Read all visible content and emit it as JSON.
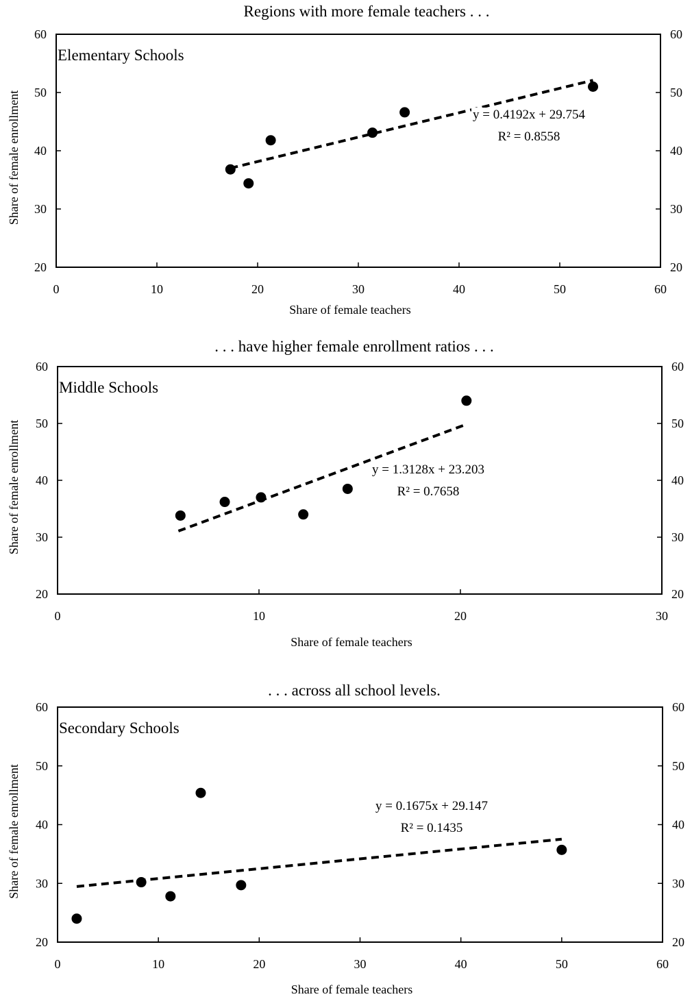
{
  "chart_data": [
    {
      "type": "scatter",
      "title": "Regions with more female teachers . . .",
      "panel_label": "Elementary Schools",
      "xlabel": "Share of female teachers",
      "ylabel": "Share of female enrollment",
      "xlim": [
        0,
        60
      ],
      "ylim": [
        20,
        60
      ],
      "xticks": [
        "0",
        "10",
        "20",
        "30",
        "40",
        "50",
        "60"
      ],
      "yticks": [
        "20",
        "30",
        "40",
        "50",
        "60"
      ],
      "points": [
        {
          "x": 17.3,
          "y": 36.8
        },
        {
          "x": 19.1,
          "y": 34.4
        },
        {
          "x": 21.3,
          "y": 41.8
        },
        {
          "x": 31.4,
          "y": 43.1
        },
        {
          "x": 34.6,
          "y": 46.6
        },
        {
          "x": 53.3,
          "y": 51.0
        }
      ],
      "trendline": {
        "slope": 0.4192,
        "intercept": 29.754,
        "x_range": [
          17.3,
          53.3
        ]
      },
      "equation": "y = 0.4192x + 29.754",
      "r_squared": "R² = 0.8558",
      "grid": false,
      "right_axis_ticks": true
    },
    {
      "type": "scatter",
      "title": ". . . have higher female enrollment ratios . . .",
      "panel_label": "Middle Schools",
      "xlabel": "Share of female teachers",
      "ylabel": "Share of female enrollment",
      "xlim": [
        0,
        30
      ],
      "ylim": [
        20,
        60
      ],
      "xticks": [
        "0",
        "10",
        "20",
        "30"
      ],
      "yticks": [
        "20",
        "30",
        "40",
        "50",
        "60"
      ],
      "points": [
        {
          "x": 6.1,
          "y": 33.8
        },
        {
          "x": 8.3,
          "y": 36.2
        },
        {
          "x": 10.1,
          "y": 37.0
        },
        {
          "x": 12.2,
          "y": 34.0
        },
        {
          "x": 14.4,
          "y": 38.5
        },
        {
          "x": 20.3,
          "y": 54.0
        }
      ],
      "trendline": {
        "slope": 1.3128,
        "intercept": 23.203,
        "x_range": [
          6.0,
          20.2
        ]
      },
      "equation": "y = 1.3128x + 23.203",
      "r_squared": "R² = 0.7658",
      "grid": false,
      "right_axis_ticks": true
    },
    {
      "type": "scatter",
      "title": ". . . across all school levels.",
      "panel_label": "Secondary Schools",
      "xlabel": "Share of female teachers",
      "ylabel": "Share of female enrollment",
      "xlim": [
        0,
        60
      ],
      "ylim": [
        20,
        60
      ],
      "xticks": [
        "0",
        "10",
        "20",
        "30",
        "40",
        "50",
        "60"
      ],
      "yticks": [
        "20",
        "30",
        "40",
        "50",
        "60"
      ],
      "points": [
        {
          "x": 1.9,
          "y": 24.0
        },
        {
          "x": 8.3,
          "y": 30.2
        },
        {
          "x": 11.2,
          "y": 27.8
        },
        {
          "x": 14.2,
          "y": 45.4
        },
        {
          "x": 18.2,
          "y": 29.7
        },
        {
          "x": 50.0,
          "y": 35.7
        }
      ],
      "trendline": {
        "slope": 0.1675,
        "intercept": 29.147,
        "x_range": [
          1.9,
          50.0
        ]
      },
      "equation": "y = 0.1675x + 29.147",
      "r_squared": "R² = 0.1435",
      "grid": false,
      "right_axis_ticks": true
    }
  ]
}
